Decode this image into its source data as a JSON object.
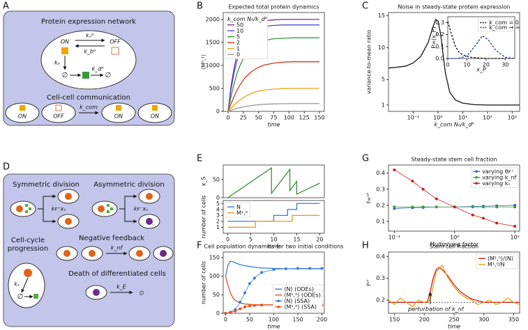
{
  "panel_a": {
    "label": "A",
    "title": "Protein expression network",
    "on": "ON",
    "off": "OFF",
    "k_top": "kᵤᴳ",
    "k_bottom": "k_bᴳ",
    "k_p": "kₚ",
    "k_d": "k_dᴾ",
    "empty1": "∅",
    "empty2": "∅",
    "comm_title": "Cell-cell communication",
    "cells": [
      "ON",
      "OFF",
      "ON",
      "ON"
    ],
    "k_com": "k_com"
  },
  "panel_d": {
    "label": "D",
    "sym": "Symmetric division",
    "asym": "Asymmetric division",
    "k_sym": "kꜰ⁺xₛ",
    "k_asym": "kꜰ⁻xₛ",
    "cycle_1": "Cell-cycle",
    "cycle_2": "progression",
    "k_s": "kₛ",
    "empty": "∅",
    "feedback": "Negative feedback",
    "k_nf": "k_nf",
    "death": "Death of differentiated cells",
    "k_e": "k_E",
    "empty2": "∅"
  },
  "chart_data": [
    {
      "type": "line",
      "panel": "B",
      "title": "Expected total protein dynamics",
      "xlabel": "time",
      "ylabel": "⟨M⁰,¹⟩",
      "xlim": [
        -8,
        158
      ],
      "ylim": [
        0,
        2150
      ],
      "xticks": [
        0,
        25,
        50,
        75,
        100,
        125,
        150
      ],
      "yticks": [
        0,
        500,
        1000,
        1500,
        2000
      ],
      "legend": "upper left",
      "legend_title": "k_com N₀/k_dᴾ",
      "series": [
        {
          "name": "50",
          "color": "#7b2d8b",
          "x": [
            0,
            5,
            10,
            15,
            20,
            25,
            30,
            40,
            50,
            60,
            75,
            90,
            105,
            120,
            135,
            150
          ],
          "values": [
            0,
            560,
            950,
            1260,
            1460,
            1620,
            1730,
            1870,
            1940,
            1970,
            1990,
            2000,
            2000,
            2000,
            2000,
            2000
          ]
        },
        {
          "name": "10",
          "color": "#4b4bcf",
          "x": [
            0,
            5,
            10,
            15,
            20,
            25,
            30,
            40,
            50,
            60,
            75,
            90,
            105,
            120,
            135,
            150
          ],
          "values": [
            0,
            490,
            850,
            1120,
            1330,
            1490,
            1600,
            1740,
            1810,
            1850,
            1870,
            1880,
            1880,
            1880,
            1880,
            1880
          ]
        },
        {
          "name": "5",
          "color": "#3a9a3a",
          "x": [
            0,
            5,
            10,
            15,
            20,
            25,
            30,
            40,
            50,
            60,
            75,
            90,
            105,
            120,
            135,
            150
          ],
          "values": [
            0,
            330,
            610,
            840,
            1010,
            1150,
            1260,
            1410,
            1490,
            1540,
            1580,
            1590,
            1600,
            1600,
            1600,
            1600
          ]
        },
        {
          "name": "2",
          "color": "#d03a1a",
          "x": [
            0,
            5,
            10,
            15,
            20,
            25,
            30,
            40,
            50,
            60,
            75,
            90,
            105,
            120,
            135,
            150
          ],
          "values": [
            0,
            170,
            330,
            470,
            580,
            680,
            760,
            880,
            960,
            1010,
            1050,
            1070,
            1080,
            1080,
            1080,
            1080
          ]
        },
        {
          "name": "1",
          "color": "#e8a317",
          "x": [
            0,
            5,
            10,
            15,
            20,
            25,
            30,
            40,
            50,
            60,
            75,
            90,
            105,
            120,
            135,
            150
          ],
          "values": [
            0,
            70,
            140,
            200,
            250,
            300,
            340,
            400,
            440,
            465,
            485,
            495,
            500,
            500,
            500,
            500
          ]
        },
        {
          "name": "0",
          "color": "#999999",
          "x": [
            0,
            5,
            10,
            15,
            20,
            25,
            30,
            40,
            50,
            60,
            75,
            90,
            105,
            120,
            135,
            150
          ],
          "values": [
            0,
            25,
            50,
            70,
            85,
            100,
            110,
            130,
            145,
            155,
            162,
            167,
            170,
            170,
            170,
            170
          ]
        }
      ]
    },
    {
      "type": "line",
      "panel": "C",
      "title": "Noise in steady-state protein expression",
      "xlabel": "k_com N₀/k_dᴾ",
      "ylabel": "variance-to-mean ratio",
      "xscale": "log",
      "xlim": [
        0.01,
        2000
      ],
      "ylim": [
        0,
        15.5
      ],
      "xticks": [
        {
          "value": 0.1,
          "label": "10⁻¹"
        },
        {
          "value": 1,
          "label": "10⁰"
        },
        {
          "value": 10,
          "label": "10¹"
        },
        {
          "value": 100,
          "label": "10²"
        },
        {
          "value": 1000,
          "label": "10³"
        }
      ],
      "yticks": [
        1,
        5,
        10,
        15
      ],
      "series": [
        {
          "color": "#111111",
          "x": [
            0.01,
            0.02,
            0.05,
            0.1,
            0.2,
            0.4,
            0.6,
            0.8,
            1,
            1.3,
            1.6,
            2,
            3,
            5,
            10,
            30,
            100,
            1000,
            2000
          ],
          "values": [
            6.8,
            6.9,
            7.1,
            7.6,
            8.6,
            10.8,
            13,
            14.4,
            14.2,
            12,
            9,
            6,
            3,
            1.8,
            1.3,
            1.05,
            1,
            1,
            1
          ]
        }
      ]
    },
    {
      "type": "line",
      "xlabel": "x_P",
      "ylabel": "P∞(x_P)",
      "xlim": [
        0,
        35
      ],
      "ylim": [
        0,
        0.35
      ],
      "xticks": [
        0,
        10,
        20,
        30
      ],
      "yticks": [
        {
          "value": 0,
          "label": "0.0"
        },
        0.1,
        0.2,
        0.3
      ],
      "legend": "upper right",
      "series": [
        {
          "name": "k_com = 0",
          "color": "#111111",
          "dash": true,
          "x": [
            0,
            2,
            4,
            6,
            8,
            12,
            20,
            30
          ],
          "values": [
            0.31,
            0.2,
            0.1,
            0.05,
            0.03,
            0.01,
            0,
            0
          ]
        },
        {
          "name": "k_com → ∞",
          "color": "#2b3a9b",
          "dash": true,
          "x": [
            0,
            5,
            10,
            15,
            18,
            21,
            25,
            30,
            35
          ],
          "values": [
            0,
            0,
            0.02,
            0.12,
            0.19,
            0.16,
            0.07,
            0.01,
            0
          ]
        }
      ]
    },
    {
      "type": "line",
      "panel": "E",
      "ylabel": "x_S",
      "xlim": [
        -1,
        21
      ],
      "ylim": [
        0,
        90
      ],
      "yticks": [
        0,
        50
      ],
      "series": [
        {
          "color": "#3a8a3a",
          "x": [
            0,
            9.5,
            9.5,
            13.5,
            13.5,
            15,
            15,
            20
          ],
          "values": [
            0,
            82,
            12,
            78,
            20,
            45,
            10,
            40
          ]
        }
      ]
    },
    {
      "type": "line",
      "xlabel": "time",
      "ylabel": "number of cells",
      "xlim": [
        -1,
        21
      ],
      "ylim": [
        0,
        5.5
      ],
      "xticks": [
        0,
        5,
        10,
        15,
        20
      ],
      "yticks": [
        1,
        2,
        3,
        4,
        5
      ],
      "legend": "upper left",
      "series": [
        {
          "name": "N",
          "color": "#3a7bd5",
          "x": [
            0,
            10,
            10,
            13,
            13,
            15,
            15,
            20
          ],
          "values": [
            2,
            2,
            3,
            3,
            4,
            4,
            5,
            5
          ]
        },
        {
          "name": "M¹,⁰",
          "color": "#e8931a",
          "x": [
            0,
            6,
            6,
            14,
            14,
            20
          ],
          "values": [
            1,
            1,
            2,
            2,
            3,
            3
          ]
        }
      ]
    },
    {
      "type": "line",
      "panel": "F",
      "title": "Cell population dynamics for two initial conditions",
      "xlabel": "time",
      "ylabel": "number of cells",
      "xlim": [
        -5,
        205
      ],
      "ylim": [
        0,
        165
      ],
      "xticks": [
        0,
        50,
        100,
        150,
        200
      ],
      "yticks": [
        0,
        50,
        100,
        150
      ],
      "legend": "lower right",
      "series": [
        {
          "name": "⟨N⟩ (ODEs)",
          "color": "#3a7bd5",
          "x": [
            0,
            5,
            10,
            15,
            20,
            30,
            40,
            50,
            60,
            75,
            100,
            125,
            150,
            175,
            200
          ],
          "values": [
            100,
            130,
            140,
            139,
            136,
            131,
            128,
            126,
            124,
            122,
            121,
            120,
            120,
            120,
            120
          ]
        },
        {
          "name": "⟨M¹,⁰⟩ (ODEs)",
          "color": "#e0531f",
          "x": [
            0,
            5,
            10,
            15,
            20,
            30,
            40,
            50,
            60,
            75,
            100,
            125,
            150,
            175,
            200
          ],
          "values": [
            100,
            75,
            55,
            42,
            35,
            28,
            25,
            24,
            23,
            23,
            23,
            23,
            23,
            23,
            23
          ]
        },
        {
          "name": "⟨N⟩ (SSA)",
          "color": "#3a7bd5",
          "marker": true,
          "x": [
            0,
            10,
            20,
            30,
            40,
            50,
            60,
            75,
            100,
            125,
            150,
            175,
            200
          ],
          "values": [
            0,
            3,
            10,
            30,
            55,
            80,
            95,
            110,
            118,
            120,
            121,
            121,
            121
          ]
        },
        {
          "name": "⟨M¹,⁰⟩ (SSA)",
          "color": "#e0531f",
          "marker": true,
          "x": [
            0,
            10,
            20,
            30,
            40,
            50,
            60,
            75,
            100,
            125,
            150,
            175,
            200
          ],
          "values": [
            0,
            2,
            6,
            12,
            17,
            20,
            21,
            22,
            22,
            22,
            22,
            22,
            22
          ]
        }
      ]
    },
    {
      "type": "line",
      "panel": "G",
      "title": "Steady-state stem cell fraction",
      "xlabel": "Multiplying factor",
      "ylabel": "f∞ˢᵀ",
      "xscale": "log",
      "xlim": [
        0.08,
        12
      ],
      "ylim": [
        0.04,
        0.45
      ],
      "xticks": [
        {
          "value": 0.1,
          "label": "10⁻¹"
        },
        {
          "value": 1,
          "label": "10⁰"
        },
        {
          "value": 10,
          "label": "10¹"
        }
      ],
      "yticks": [
        0.1,
        0.2,
        0.3,
        0.4
      ],
      "legend": "upper right",
      "series": [
        {
          "name": "varying θꜰ⁺",
          "color": "#3a5fcd",
          "marker": true,
          "x": [
            0.1,
            0.2,
            0.3,
            0.5,
            1,
            2,
            3,
            5,
            10
          ],
          "values": [
            0.18,
            0.185,
            0.187,
            0.19,
            0.19,
            0.193,
            0.195,
            0.197,
            0.2
          ]
        },
        {
          "name": "varying k_nf",
          "color": "#3a9a3a",
          "marker": true,
          "x": [
            0.1,
            0.2,
            0.3,
            0.5,
            1,
            2,
            3,
            5,
            10
          ],
          "values": [
            0.19,
            0.19,
            0.19,
            0.19,
            0.19,
            0.19,
            0.19,
            0.19,
            0.19
          ]
        },
        {
          "name": "varying kₛ",
          "color": "#c81e1e",
          "marker": true,
          "x": [
            0.1,
            0.2,
            0.3,
            0.5,
            1,
            2,
            3,
            5,
            10
          ],
          "values": [
            0.42,
            0.35,
            0.3,
            0.24,
            0.19,
            0.14,
            0.12,
            0.09,
            0.07
          ]
        }
      ]
    },
    {
      "type": "line",
      "panel": "H",
      "title": "Stem cell fraction",
      "xlabel": "time",
      "ylabel": "fˢᵀ",
      "xlim": [
        140,
        360
      ],
      "ylim": [
        0.14,
        0.42
      ],
      "xticks": [
        150,
        200,
        250,
        300,
        350
      ],
      "yticks": [
        0.2,
        0.3,
        0.4
      ],
      "legend": "upper right",
      "hline": 0.19,
      "annotation": {
        "text": "perturbation of k_nf",
        "x": 210
      },
      "series": [
        {
          "name": "⟨M¹,⁰⟩/⟨N⟩",
          "color": "#c81e1e",
          "x": [
            140,
            205,
            210,
            215,
            220,
            225,
            230,
            240,
            250,
            260,
            270,
            280,
            300,
            320,
            340,
            360
          ],
          "values": [
            0.19,
            0.19,
            0.24,
            0.3,
            0.34,
            0.35,
            0.34,
            0.31,
            0.27,
            0.24,
            0.22,
            0.205,
            0.19,
            0.19,
            0.19,
            0.19
          ]
        },
        {
          "name": "M¹,⁰/N",
          "color": "#e8a317",
          "x": [
            140,
            150,
            160,
            170,
            180,
            190,
            200,
            210,
            220,
            230,
            240,
            250,
            260,
            270,
            280,
            290,
            300,
            310,
            320,
            330,
            340,
            350,
            360
          ],
          "values": [
            0.2,
            0.18,
            0.21,
            0.19,
            0.17,
            0.2,
            0.19,
            0.2,
            0.33,
            0.36,
            0.3,
            0.26,
            0.23,
            0.21,
            0.2,
            0.18,
            0.19,
            0.2,
            0.18,
            0.19,
            0.21,
            0.19,
            0.18
          ]
        }
      ]
    }
  ]
}
